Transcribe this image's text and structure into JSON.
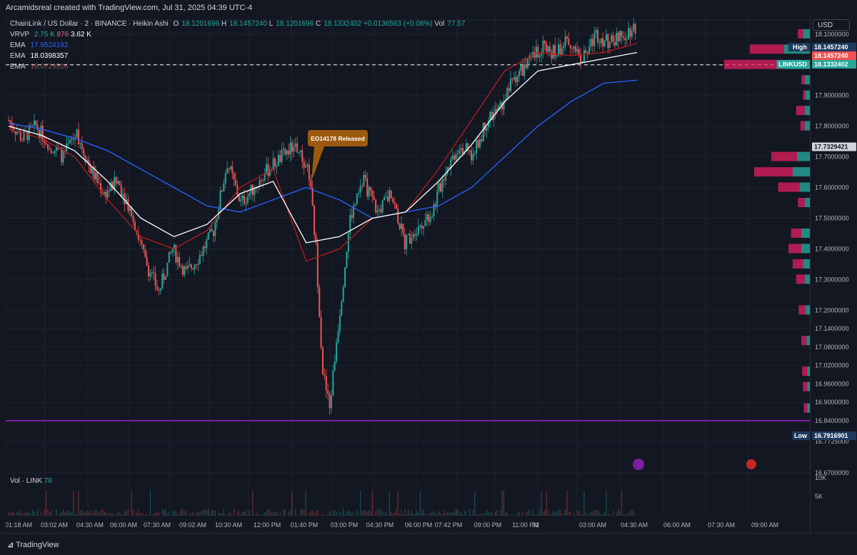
{
  "header": {
    "attribution": "Arcamidsreal created with TradingView.com, Jul 31, 2025 04:39 UTC-4"
  },
  "legend": {
    "symbol": "ChainLink / US Dollar · 2 · BINANCE · Heikin Ashi",
    "o_label": "O",
    "o": "18.1201696",
    "h_label": "H",
    "h": "18.1457240",
    "l_label": "L",
    "l": "18.1201696",
    "c_label": "C",
    "c": "18.1332402",
    "change": "+0.0136563 (+0.08%)",
    "vol_label": "Vol",
    "vol": "77.57",
    "vrvp_label": "VRVP",
    "vrvp_a": "2.75 K",
    "vrvp_b": "876",
    "vrvp_c": "3.62 K",
    "ema1_label": "EMA",
    "ema1": "17.9524192",
    "ema2_label": "EMA",
    "ema2": "18.0398357",
    "ema3_label": "EMA",
    "ema3": "18.0729516"
  },
  "currency_button": "USD",
  "annotation": "EO14178 Released",
  "price_tags": {
    "high_label": "High",
    "high": "18.1457240",
    "high_red": "18.1457240",
    "symbol": "LINKUSD",
    "last": "18.1332402",
    "crosshair": "17.7329421",
    "low_label": "Low",
    "low": "16.7916901"
  },
  "volume_legend": {
    "label": "Vol · LINK",
    "value": "78"
  },
  "footer": {
    "brand": "TradingView"
  },
  "colors": {
    "bg": "#131722",
    "up": "#26a69a",
    "down": "#ef5350",
    "ema_blue": "#2962ff",
    "ema_white": "#ffffff",
    "ema_red": "#b71c1c",
    "vp_up": "#26a69a",
    "vp_down": "#e91e63",
    "purple_line": "#7b1fa2"
  },
  "chart_data": {
    "type": "candlestick",
    "price_axis_ticks": [
      18.1,
      18.0,
      17.9,
      17.8,
      17.7,
      17.6,
      17.5,
      17.4,
      17.3,
      17.2,
      17.14,
      17.08,
      17.02,
      16.96,
      16.9,
      16.84,
      16.7725,
      16.67
    ],
    "price_axis_labels": [
      "18.1000000",
      "18.0000000",
      "17.9000000",
      "17.8000000",
      "17.7000000",
      "17.6000000",
      "17.5000000",
      "17.4000000",
      "17.3000000",
      "17.2000000",
      "17.1400000",
      "17.0800000",
      "17.0200000",
      "16.9600000",
      "16.9000000",
      "16.8400000",
      "16.7725000",
      "16.6700000"
    ],
    "time_axis_labels": [
      "01:18 AM",
      "03:02 AM",
      "04:30 AM",
      "06:00 AM",
      "07:30 AM",
      "09:02 AM",
      "10:30 AM",
      "12:00 PM",
      "01:40 PM",
      "03:00 PM",
      "04:30 PM",
      "06:00 PM",
      "07:42 PM",
      "09:00 PM",
      "11:00 PM",
      "31",
      "03:00 AM",
      "04:30 AM",
      "06:00 AM",
      "07:30 AM",
      "09:00 AM"
    ],
    "volume_axis_labels": [
      "10K",
      "5K"
    ],
    "price_series": [
      {
        "t": 0,
        "p": 17.82
      },
      {
        "t": 2,
        "p": 17.76
      },
      {
        "t": 4,
        "p": 17.8
      },
      {
        "t": 6,
        "p": 17.74
      },
      {
        "t": 8,
        "p": 17.7
      },
      {
        "t": 10,
        "p": 17.78
      },
      {
        "t": 12,
        "p": 17.66
      },
      {
        "t": 14,
        "p": 17.58
      },
      {
        "t": 16,
        "p": 17.62
      },
      {
        "t": 18,
        "p": 17.52
      },
      {
        "t": 20,
        "p": 17.36
      },
      {
        "t": 22,
        "p": 17.26
      },
      {
        "t": 24,
        "p": 17.4
      },
      {
        "t": 26,
        "p": 17.32
      },
      {
        "t": 28,
        "p": 17.38
      },
      {
        "t": 30,
        "p": 17.46
      },
      {
        "t": 32,
        "p": 17.68
      },
      {
        "t": 34,
        "p": 17.55
      },
      {
        "t": 36,
        "p": 17.6
      },
      {
        "t": 38,
        "p": 17.66
      },
      {
        "t": 40,
        "p": 17.7
      },
      {
        "t": 42,
        "p": 17.74
      },
      {
        "t": 44,
        "p": 17.64
      },
      {
        "t": 45,
        "p": 17.4
      },
      {
        "t": 46,
        "p": 17.0
      },
      {
        "t": 47,
        "p": 16.88
      },
      {
        "t": 48,
        "p": 17.1
      },
      {
        "t": 49,
        "p": 17.3
      },
      {
        "t": 50,
        "p": 17.5
      },
      {
        "t": 52,
        "p": 17.62
      },
      {
        "t": 54,
        "p": 17.52
      },
      {
        "t": 56,
        "p": 17.58
      },
      {
        "t": 58,
        "p": 17.42
      },
      {
        "t": 60,
        "p": 17.48
      },
      {
        "t": 62,
        "p": 17.52
      },
      {
        "t": 64,
        "p": 17.66
      },
      {
        "t": 66,
        "p": 17.74
      },
      {
        "t": 68,
        "p": 17.7
      },
      {
        "t": 70,
        "p": 17.82
      },
      {
        "t": 72,
        "p": 17.86
      },
      {
        "t": 74,
        "p": 17.96
      },
      {
        "t": 76,
        "p": 18.0
      },
      {
        "t": 78,
        "p": 18.06
      },
      {
        "t": 80,
        "p": 18.04
      },
      {
        "t": 82,
        "p": 18.08
      },
      {
        "t": 84,
        "p": 18.02
      },
      {
        "t": 86,
        "p": 18.1
      },
      {
        "t": 88,
        "p": 18.07
      },
      {
        "t": 90,
        "p": 18.1
      },
      {
        "t": 92,
        "p": 18.13
      }
    ],
    "ema_blue": [
      17.81,
      17.79,
      17.76,
      17.72,
      17.66,
      17.6,
      17.54,
      17.52,
      17.56,
      17.6,
      17.56,
      17.5,
      17.52,
      17.54,
      17.6,
      17.7,
      17.8,
      17.88,
      17.94,
      17.95
    ],
    "ema_white": [
      17.8,
      17.77,
      17.72,
      17.62,
      17.5,
      17.44,
      17.48,
      17.58,
      17.62,
      17.42,
      17.44,
      17.5,
      17.52,
      17.62,
      17.74,
      17.88,
      17.98,
      18.0,
      18.02,
      18.04
    ],
    "ema_red": [
      17.79,
      17.76,
      17.7,
      17.56,
      17.44,
      17.4,
      17.46,
      17.6,
      17.66,
      17.36,
      17.4,
      17.5,
      17.52,
      17.66,
      17.82,
      17.98,
      18.04,
      18.03,
      18.04,
      18.07
    ],
    "volume_profile": [
      {
        "price": 18.0,
        "up": 0.3,
        "down": 0.7
      },
      {
        "price": 18.05,
        "up": 0.3,
        "down": 0.4
      },
      {
        "price": 18.1,
        "up": 0.08,
        "down": 0.06
      },
      {
        "price": 17.95,
        "up": 0.06,
        "down": 0.04
      },
      {
        "price": 17.9,
        "up": 0.05,
        "down": 0.03
      },
      {
        "price": 17.85,
        "up": 0.06,
        "down": 0.1
      },
      {
        "price": 17.8,
        "up": 0.06,
        "down": 0.05
      },
      {
        "price": 17.7,
        "up": 0.15,
        "down": 0.3
      },
      {
        "price": 17.65,
        "up": 0.2,
        "down": 0.45
      },
      {
        "price": 17.6,
        "up": 0.12,
        "down": 0.25
      },
      {
        "price": 17.55,
        "up": 0.06,
        "down": 0.08
      },
      {
        "price": 17.45,
        "up": 0.1,
        "down": 0.12
      },
      {
        "price": 17.4,
        "up": 0.1,
        "down": 0.15
      },
      {
        "price": 17.35,
        "up": 0.08,
        "down": 0.12
      },
      {
        "price": 17.3,
        "up": 0.06,
        "down": 0.1
      },
      {
        "price": 17.2,
        "up": 0.05,
        "down": 0.08
      },
      {
        "price": 17.1,
        "up": 0.04,
        "down": 0.06
      },
      {
        "price": 17.0,
        "up": 0.03,
        "down": 0.06
      },
      {
        "price": 16.95,
        "up": 0.03,
        "down": 0.05
      },
      {
        "price": 16.88,
        "up": 0.03,
        "down": 0.04
      }
    ],
    "horizontal_lines": {
      "dashed": 18.0,
      "purple": 16.84
    },
    "ylim": [
      16.67,
      18.16
    ]
  }
}
